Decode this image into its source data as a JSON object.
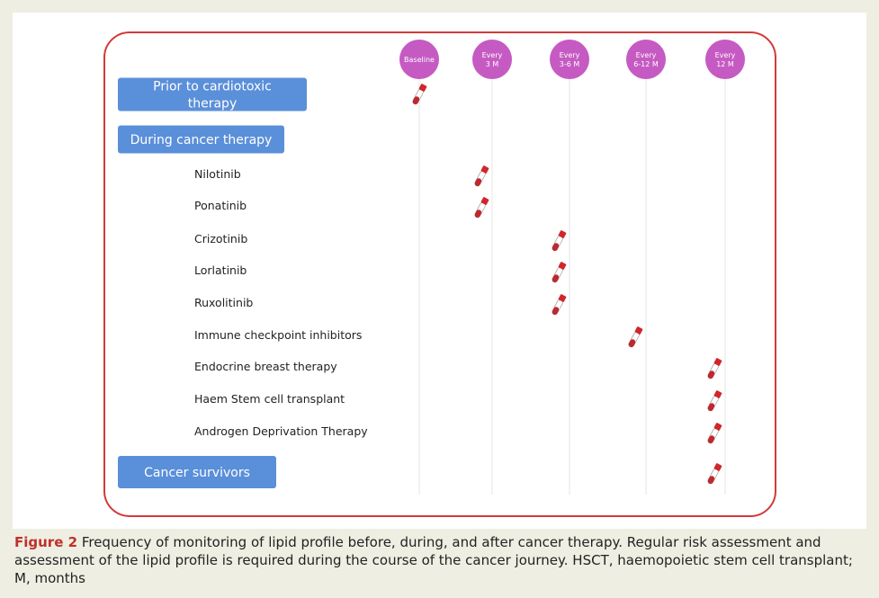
{
  "columns": [
    {
      "lines": [
        "Baseline"
      ]
    },
    {
      "lines": [
        "Every",
        "3 M"
      ]
    },
    {
      "lines": [
        "Every",
        "3-6 M"
      ]
    },
    {
      "lines": [
        "Every",
        "6-12 M"
      ]
    },
    {
      "lines": [
        "Every",
        "12 M"
      ]
    }
  ],
  "rows": [
    {
      "lines": [
        "Prior to cardiotoxic",
        "therapy"
      ],
      "group": true,
      "column": 0
    },
    {
      "lines": [
        "During cancer therapy"
      ],
      "group": true,
      "column": null
    },
    {
      "lines": [
        "Nilotinib"
      ],
      "group": false,
      "column": 1
    },
    {
      "lines": [
        "Ponatinib"
      ],
      "group": false,
      "column": 1
    },
    {
      "lines": [
        "Crizotinib"
      ],
      "group": false,
      "column": 2
    },
    {
      "lines": [
        "Lorlatinib"
      ],
      "group": false,
      "column": 2
    },
    {
      "lines": [
        "Ruxolitinib"
      ],
      "group": false,
      "column": 2
    },
    {
      "lines": [
        "Immune checkpoint inhibitors"
      ],
      "group": false,
      "column": 3
    },
    {
      "lines": [
        "Endocrine breast therapy"
      ],
      "group": false,
      "column": 4
    },
    {
      "lines": [
        "Haem Stem cell transplant"
      ],
      "group": false,
      "column": 4
    },
    {
      "lines": [
        "Androgen Deprivation Therapy"
      ],
      "group": false,
      "column": 4
    },
    {
      "lines": [
        "Cancer survivors"
      ],
      "group": true,
      "column": 4
    }
  ],
  "caption": {
    "label": "Figure 2",
    "text": "Frequency of monitoring of lipid profile before, during, and after cancer therapy. Regular risk assessment and assessment of the lipid profile is required during the course of the cancer journey. HSCT, haemopoietic stem cell transplant; M, months"
  }
}
